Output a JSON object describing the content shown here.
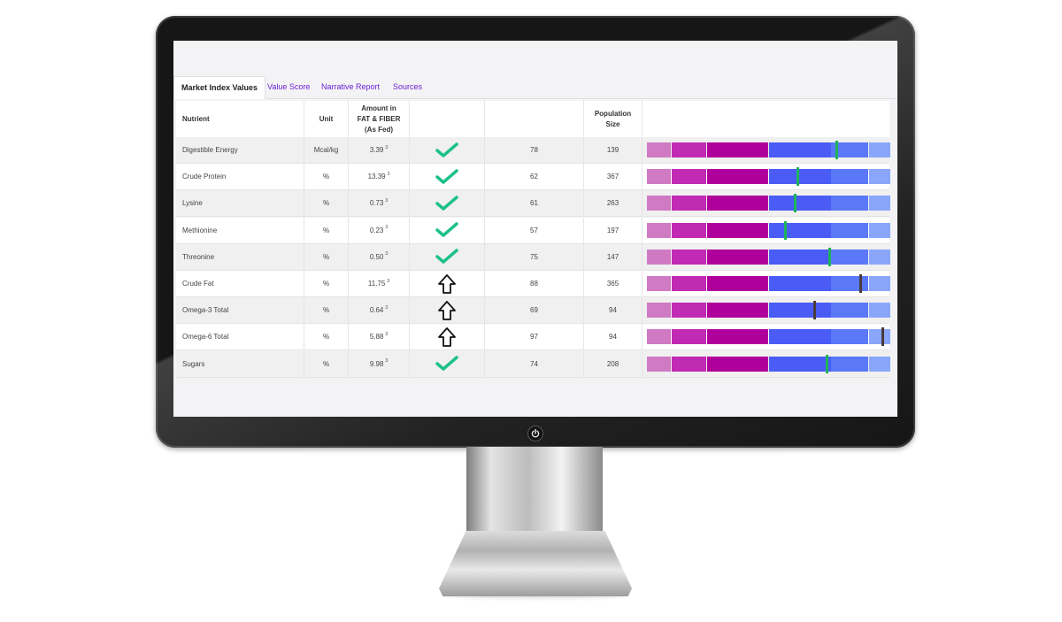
{
  "tabs": [
    {
      "label": "Market Index Values",
      "active": true
    },
    {
      "label": "Value Score",
      "active": false
    },
    {
      "label": "Narrative Report",
      "active": false
    },
    {
      "label": "Sources",
      "active": false
    }
  ],
  "table": {
    "headers": {
      "nutrient": "Nutrient",
      "unit": "Unit",
      "amount_line1": "Amount in",
      "amount_line2": "FAT & FIBER",
      "amount_line3": "(As Fed)",
      "population_line1": "Population",
      "population_line2": "Size"
    },
    "rows": [
      {
        "nutrient": "Digestible Energy",
        "unit": "Mcal/kg",
        "amount": "3.39",
        "sup": "3",
        "status": "check-icon",
        "score": "78",
        "population": "139",
        "position": 0.78,
        "marker_color": "#1db45a"
      },
      {
        "nutrient": "Crude Protein",
        "unit": "%",
        "amount": "13.39",
        "sup": "3",
        "status": "check-icon",
        "score": "62",
        "population": "367",
        "position": 0.62,
        "marker_color": "#1db45a"
      },
      {
        "nutrient": "Lysine",
        "unit": "%",
        "amount": "0.73",
        "sup": "3",
        "status": "check-icon",
        "score": "61",
        "population": "263",
        "position": 0.61,
        "marker_color": "#1db45a"
      },
      {
        "nutrient": "Methionine",
        "unit": "%",
        "amount": "0.23",
        "sup": "3",
        "status": "check-icon",
        "score": "57",
        "population": "197",
        "position": 0.57,
        "marker_color": "#1db45a"
      },
      {
        "nutrient": "Threonine",
        "unit": "%",
        "amount": "0.50",
        "sup": "3",
        "status": "check-icon",
        "score": "75",
        "population": "147",
        "position": 0.75,
        "marker_color": "#1db45a"
      },
      {
        "nutrient": "Crude Fat",
        "unit": "%",
        "amount": "11.75",
        "sup": "3",
        "status": "arrow-up-icon",
        "score": "88",
        "population": "365",
        "position": 0.88,
        "marker_color": "#4a3a3a"
      },
      {
        "nutrient": "Omega-3 Total",
        "unit": "%",
        "amount": "0.64",
        "sup": "3",
        "status": "arrow-up-icon",
        "score": "69",
        "population": "94",
        "position": 0.69,
        "marker_color": "#4a3a3a"
      },
      {
        "nutrient": "Omega-6 Total",
        "unit": "%",
        "amount": "5.88",
        "sup": "3",
        "status": "arrow-up-icon",
        "score": "97",
        "population": "94",
        "position": 0.97,
        "marker_color": "#4a3a3a"
      },
      {
        "nutrient": "Sugars",
        "unit": "%",
        "amount": "9.98",
        "sup": "3",
        "status": "check-icon",
        "score": "74",
        "population": "208",
        "position": 0.74,
        "marker_color": "#1db45a"
      }
    ]
  },
  "bar_segments": [
    {
      "color": "#d07ac4"
    },
    {
      "color": "#c12ab3"
    },
    {
      "color": "#b0009c"
    },
    {
      "color": "#4a5cf5"
    },
    {
      "color": "#5a78f8"
    },
    {
      "color": "#8aa6fb"
    }
  ],
  "colors": {
    "check": "#1dc08a",
    "tab_link": "#6a1fd1"
  }
}
